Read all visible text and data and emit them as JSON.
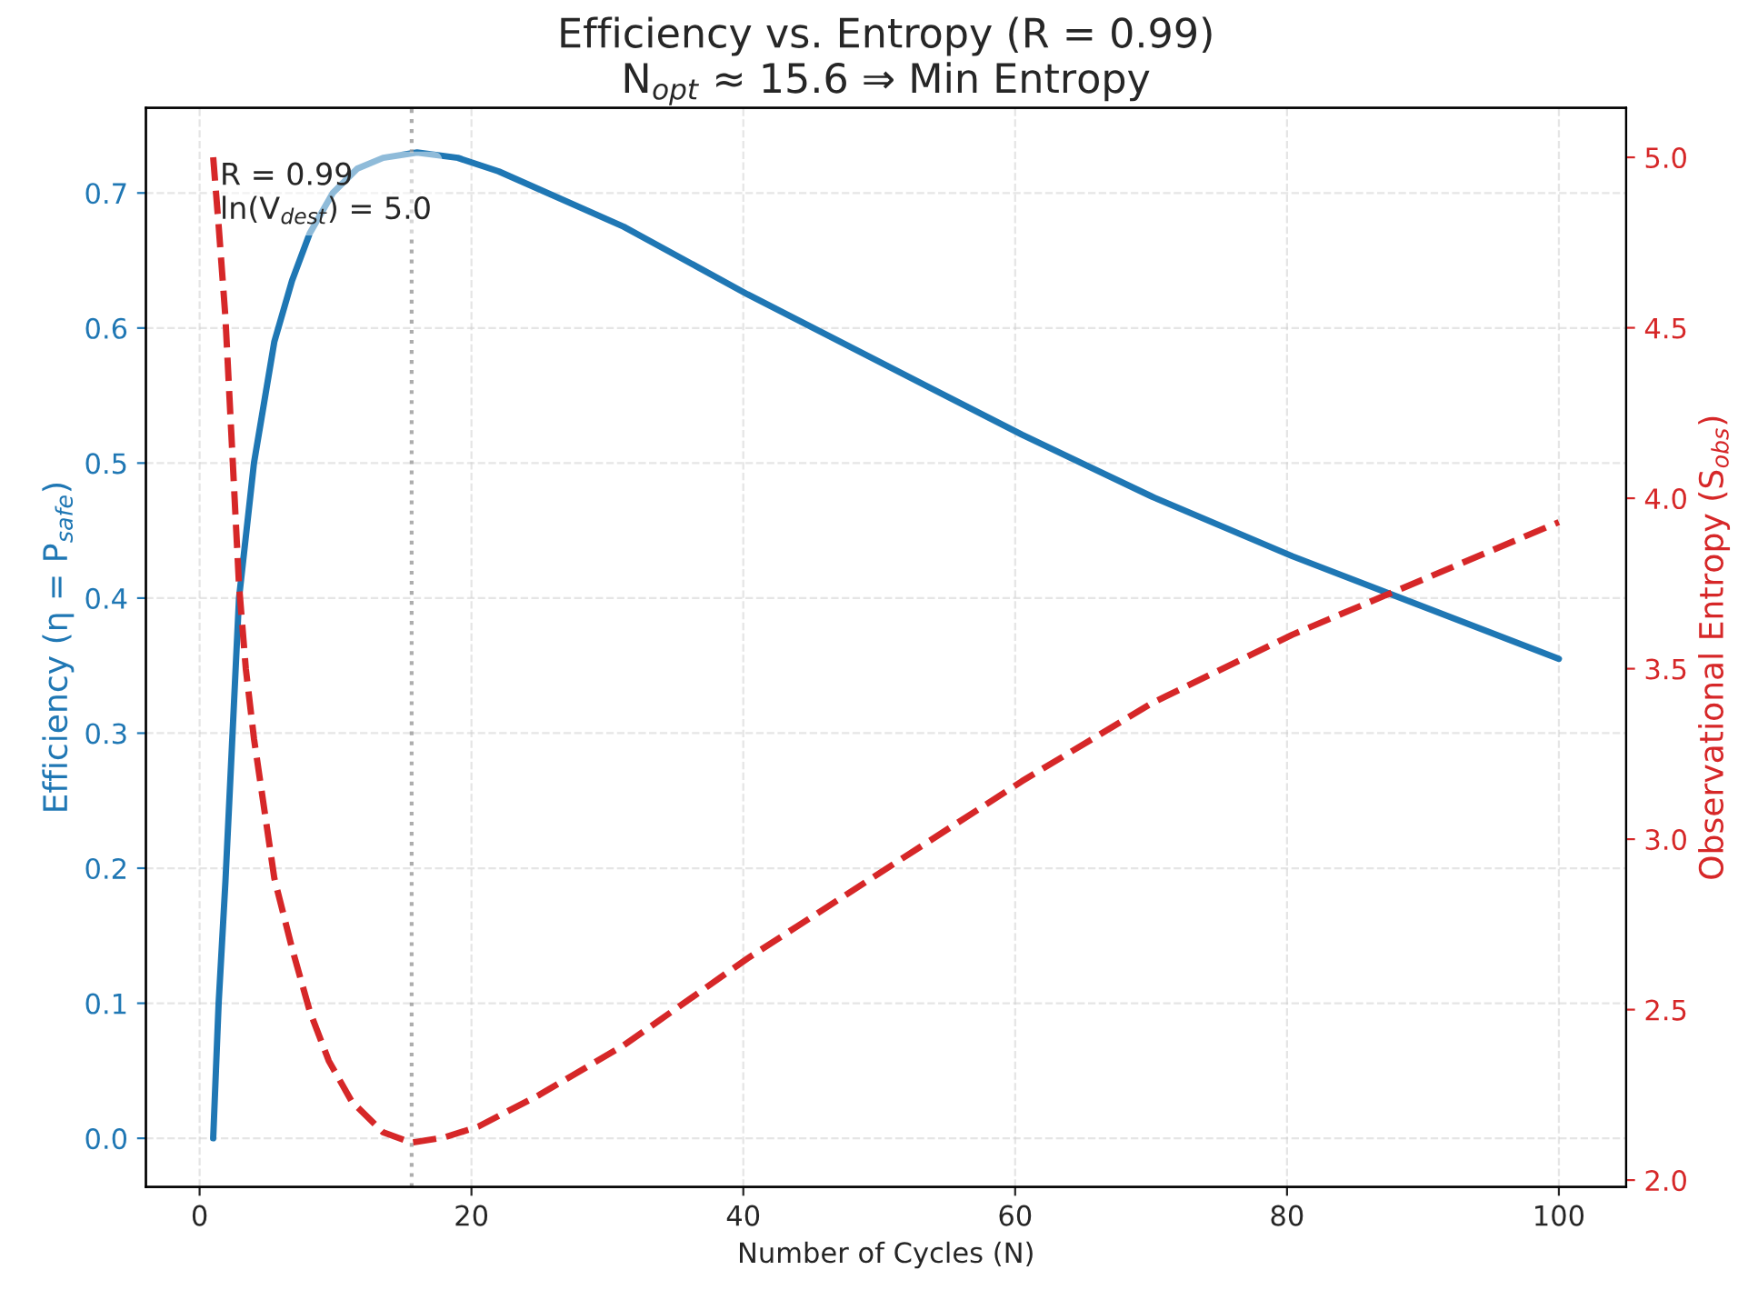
{
  "chart_data": {
    "type": "line",
    "title": "Efficiency vs. Entropy (R = 0.99)\nN$_{opt}$ ≈ 15.6 ⇒ Min Entropy",
    "xlabel": "Number of Cycles (N)",
    "ylabel": "Efficiency (η = P$_{safe}$)",
    "y2label": "Observational Entropy (S$_{obs}$)",
    "annotations": [
      "R = 0.99\nln(V$_{dest}$) = 5.0"
    ],
    "series": [
      {
        "color": "#1f77b4",
        "line_style": "solid",
        "x": [
          1,
          1.4,
          1.9,
          2.9,
          4.0,
          5.5,
          6.8,
          8.1,
          9.8,
          11.6,
          13.5,
          16.0,
          19,
          22,
          31.2,
          40.3,
          60.5,
          70.1,
          80.4,
          100
        ],
        "values": [
          0.0,
          0.1,
          0.19,
          0.4,
          0.5,
          0.59,
          0.635,
          0.67,
          0.7,
          0.718,
          0.726,
          0.73,
          0.726,
          0.716,
          0.675,
          0.625,
          0.521,
          0.475,
          0.431,
          0.355
        ]
      },
      {
        "color": "#d62728",
        "line_style": "dashed",
        "axis": "y2",
        "x": [
          1,
          1.4,
          1.9,
          2.9,
          3.4,
          4.0,
          5.5,
          6.8,
          8.1,
          9.5,
          11.2,
          13.5,
          15.6,
          18,
          20.5,
          25,
          31.2,
          40.3,
          60.5,
          70.1,
          80.4,
          100
        ],
        "values": [
          5.0,
          4.8,
          4.53,
          3.745,
          3.5,
          3.295,
          2.885,
          2.68,
          2.496,
          2.35,
          2.23,
          2.14,
          2.11,
          2.125,
          2.157,
          2.25,
          2.395,
          2.65,
          3.17,
          3.4,
          3.6,
          3.93
        ]
      }
    ],
    "ref_lines": [
      {
        "axis": "x",
        "value": 15.6,
        "color": "#999999",
        "line_style": "dotted"
      }
    ],
    "xlim": [
      -3.95,
      104.95
    ],
    "xticks": [
      0,
      20,
      40,
      60,
      80,
      100
    ],
    "ylim": [
      -0.036,
      0.763
    ],
    "yticks": [
      {
        "value": 0,
        "label": "0.0"
      },
      0.1,
      0.2,
      0.3,
      0.4,
      0.5,
      0.6,
      0.7
    ],
    "y2lim": [
      1.98,
      5.145
    ],
    "y2ticks": [
      {
        "value": 2,
        "label": "2.0"
      },
      2.5,
      {
        "value": 3,
        "label": "3.0"
      },
      3.5,
      {
        "value": 4,
        "label": "4.0"
      },
      4.5,
      {
        "value": 5,
        "label": "5.0"
      }
    ],
    "grid": true,
    "legend": false
  }
}
